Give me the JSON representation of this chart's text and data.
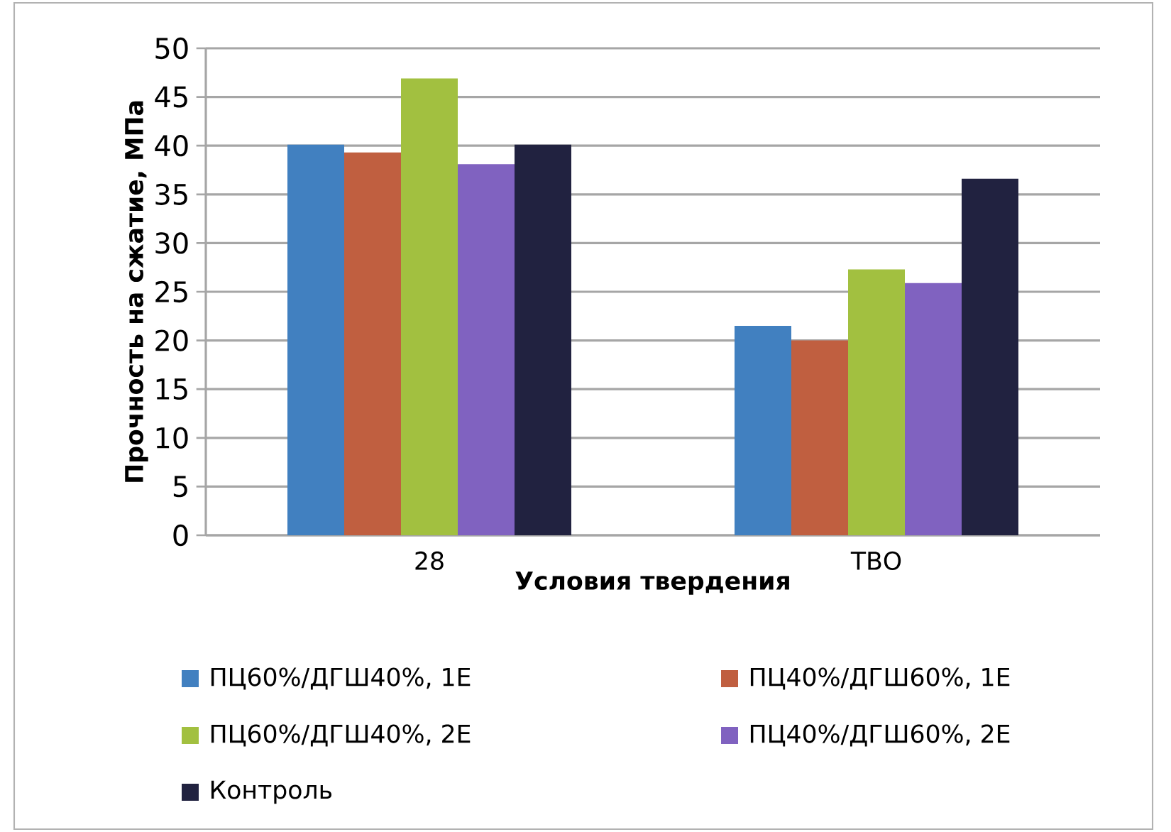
{
  "chart_data": {
    "type": "bar",
    "xlabel": "Условия твердения",
    "ylabel": "Прочность на сжатие, МПа",
    "categories": [
      "28",
      "ТВО"
    ],
    "series": [
      {
        "name": "ПЦ60%/ДГШ40%, 1Е",
        "color": "#4180c0",
        "values": [
          40.1,
          21.5
        ]
      },
      {
        "name": "ПЦ40%/ДГШ60%, 1Е",
        "color": "#c05f40",
        "values": [
          39.3,
          20.0
        ]
      },
      {
        "name": "ПЦ60%/ДГШ40%, 2Е",
        "color": "#a2c040",
        "values": [
          46.9,
          27.3
        ]
      },
      {
        "name": "ПЦ40%/ДГШ60%, 2Е",
        "color": "#8062c0",
        "values": [
          38.1,
          25.9
        ]
      },
      {
        "name": "Контроль",
        "color": "#212240",
        "values": [
          40.1,
          36.6
        ]
      }
    ],
    "ylim": [
      0,
      50
    ],
    "yticks": [
      0,
      5,
      10,
      15,
      20,
      25,
      30,
      35,
      40,
      45,
      50
    ],
    "grid": "y",
    "legend": "bottom"
  }
}
